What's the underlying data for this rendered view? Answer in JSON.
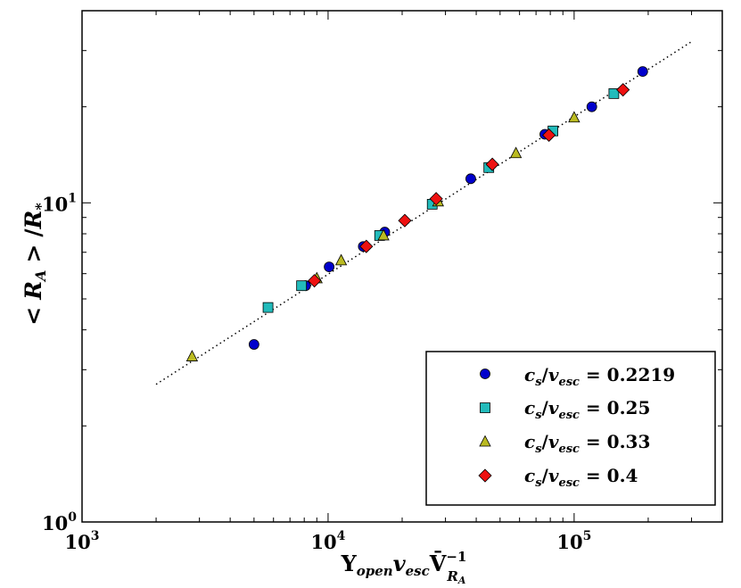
{
  "chart_data": {
    "type": "scatter",
    "xscale": "log",
    "yscale": "log",
    "xlim": [
      1000,
      400000
    ],
    "ylim": [
      1,
      40
    ],
    "x_ticks": [
      {
        "value": 1000,
        "base": "10",
        "exp": "3"
      },
      {
        "value": 10000,
        "base": "10",
        "exp": "4"
      },
      {
        "value": 100000,
        "base": "10",
        "exp": "5"
      }
    ],
    "y_ticks": [
      {
        "value": 1,
        "base": "10",
        "exp": "0"
      },
      {
        "value": 10,
        "base": "10",
        "exp": "1"
      }
    ],
    "xlabel": {
      "upsilon": "Υ",
      "open": "open",
      "v": "v",
      "esc": "esc",
      "vbar": "V̄",
      "exp": "−1",
      "sub": "R",
      "subsub": "A"
    },
    "ylabel": {
      "lt": "<",
      "R": "R",
      "A": "A",
      "gt": ">",
      "slash": "/",
      "Rs": "R",
      "star": "*"
    },
    "fit_line": {
      "style": "dotted",
      "x": [
        2000,
        300000
      ],
      "y": [
        2.7,
        32
      ]
    },
    "legend_position": "lower-right",
    "series": [
      {
        "name": "c_s/v_esc = 0.2219",
        "label": {
          "c": "c",
          "s": "s",
          "v": "v",
          "esc": "esc",
          "value": "0.2219"
        },
        "marker": "circle",
        "color": "#0000cc",
        "points": [
          [
            5000,
            3.6
          ],
          [
            8100,
            5.5
          ],
          [
            10100,
            6.3
          ],
          [
            13900,
            7.3
          ],
          [
            17000,
            8.1
          ],
          [
            38000,
            11.9
          ],
          [
            76000,
            16.4
          ],
          [
            118000,
            20.0
          ],
          [
            190000,
            25.8
          ]
        ]
      },
      {
        "name": "c_s/v_esc = 0.25",
        "label": {
          "c": "c",
          "s": "s",
          "v": "v",
          "esc": "esc",
          "value": "0.25"
        },
        "marker": "square",
        "color": "#22bbbb",
        "points": [
          [
            5700,
            4.7
          ],
          [
            7800,
            5.5
          ],
          [
            16200,
            7.9
          ],
          [
            26500,
            9.9
          ],
          [
            45000,
            12.9
          ],
          [
            82000,
            16.8
          ],
          [
            145000,
            22.0
          ]
        ]
      },
      {
        "name": "c_s/v_esc = 0.33",
        "label": {
          "c": "c",
          "s": "s",
          "v": "v",
          "esc": "esc",
          "value": "0.33"
        },
        "marker": "triangle",
        "color": "#bbbb22",
        "points": [
          [
            2800,
            3.3
          ],
          [
            9000,
            5.8
          ],
          [
            11300,
            6.6
          ],
          [
            16800,
            7.9
          ],
          [
            28000,
            10.1
          ],
          [
            58000,
            14.3
          ],
          [
            100000,
            18.5
          ]
        ]
      },
      {
        "name": "c_s/v_esc = 0.4",
        "label": {
          "c": "c",
          "s": "s",
          "v": "v",
          "esc": "esc",
          "value": "0.4"
        },
        "marker": "diamond",
        "color": "#ee1111",
        "points": [
          [
            8800,
            5.7
          ],
          [
            14300,
            7.3
          ],
          [
            20500,
            8.8
          ],
          [
            27500,
            10.3
          ],
          [
            46500,
            13.2
          ],
          [
            79000,
            16.3
          ],
          [
            158000,
            22.6
          ]
        ]
      }
    ]
  }
}
